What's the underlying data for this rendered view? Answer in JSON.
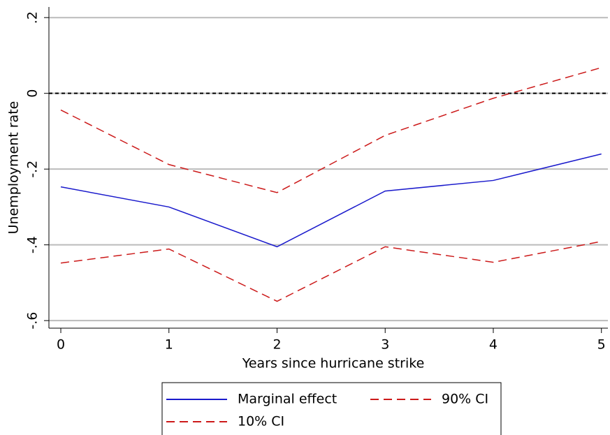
{
  "chart_data": {
    "type": "line",
    "x_label": "Years since hurricane strike",
    "y_label": "Unemployment rate",
    "x": [
      0,
      1,
      2,
      3,
      4,
      5
    ],
    "series": [
      {
        "name": "Marginal effect",
        "color": "#1a1acc",
        "dash": "solid",
        "values": [
          -0.247,
          -0.3,
          -0.405,
          -0.258,
          -0.23,
          -0.16
        ]
      },
      {
        "name": "90% CI",
        "color": "#cc1a1a",
        "dash": "dashed",
        "values": [
          -0.044,
          -0.188,
          -0.262,
          -0.111,
          -0.013,
          0.068
        ]
      },
      {
        "name": "10% CI",
        "color": "#cc1a1a",
        "dash": "dashed",
        "values": [
          -0.448,
          -0.411,
          -0.549,
          -0.405,
          -0.446,
          -0.391
        ]
      }
    ],
    "reference_line": 0,
    "xlim": [
      -0.11,
      5.06
    ],
    "ylim": [
      -0.62,
      0.228
    ],
    "xticks": [
      0,
      1,
      2,
      3,
      4,
      5
    ],
    "yticks": [
      {
        "value": 0.2,
        "label": ".2"
      },
      0,
      {
        "value": -0.2,
        "label": "-.2"
      },
      {
        "value": -0.4,
        "label": "-.4"
      },
      {
        "value": -0.6,
        "label": "-.6"
      }
    ],
    "grid": true
  }
}
